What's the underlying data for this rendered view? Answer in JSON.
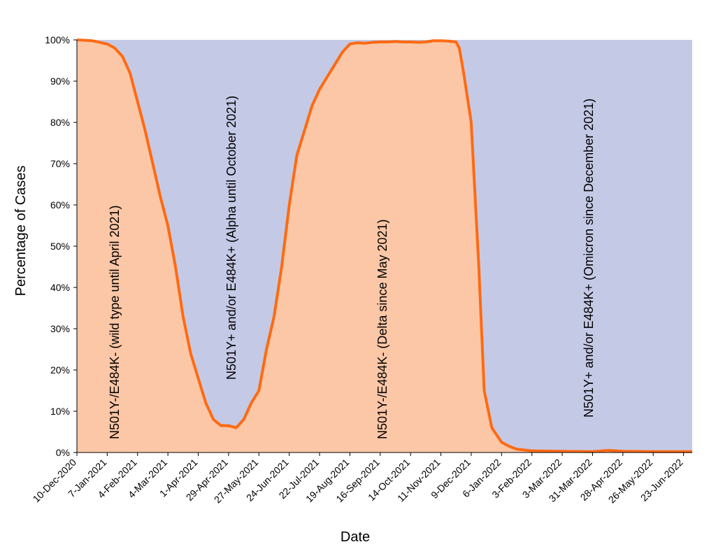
{
  "chart_data": {
    "type": "area",
    "title": "",
    "xlabel": "Date",
    "ylabel": "Percentage of Cases",
    "ylim": [
      0,
      100
    ],
    "grid": false,
    "legend": "none",
    "x_ticks": [
      "10-Dec-2020",
      "7-Jan-2021",
      "4-Feb-2021",
      "4-Mar-2021",
      "1-Apr-2021",
      "29-Apr-2021",
      "27-May-2021",
      "24-Jun-2021",
      "22-Jul-2021",
      "19-Aug-2021",
      "16-Sep-2021",
      "14-Oct-2021",
      "11-Nov-2021",
      "9-Dec-2021",
      "6-Jan-2022",
      "3-Feb-2022",
      "3-Mar-2022",
      "31-Mar-2022",
      "28-Apr-2022",
      "26-May-2022",
      "23-Jun-2022"
    ],
    "x_end": "1-Jul-2022",
    "y_ticks": [
      "0%",
      "10%",
      "20%",
      "30%",
      "40%",
      "50%",
      "60%",
      "70%",
      "80%",
      "90%",
      "100%"
    ],
    "colors": {
      "lower_area": "#fbc7a6",
      "upper_area": "#c4cae6",
      "line": "#ff6a13"
    },
    "annotations": [
      "N501Y-/E484K- (wild type until April 2021)",
      "N501Y+ and/or E484K+ (Alpha until October 2021)",
      "N501Y-/E484K- (Delta since May 2021)",
      "N501Y+ and/or E484K+ (Omicron since December 2021)"
    ],
    "series": [
      {
        "values": [
          [
            "10-Dec-2020",
            100
          ],
          [
            "24-Dec-2020",
            99.8
          ],
          [
            "7-Jan-2021",
            99
          ],
          [
            "14-Jan-2021",
            98
          ],
          [
            "21-Jan-2021",
            96
          ],
          [
            "28-Jan-2021",
            92
          ],
          [
            "4-Feb-2021",
            85
          ],
          [
            "11-Feb-2021",
            78
          ],
          [
            "18-Feb-2021",
            70
          ],
          [
            "25-Feb-2021",
            62
          ],
          [
            "4-Mar-2021",
            55
          ],
          [
            "11-Mar-2021",
            45
          ],
          [
            "18-Mar-2021",
            33
          ],
          [
            "25-Mar-2021",
            24
          ],
          [
            "1-Apr-2021",
            18
          ],
          [
            "8-Apr-2021",
            12
          ],
          [
            "15-Apr-2021",
            8
          ],
          [
            "22-Apr-2021",
            6.5
          ],
          [
            "29-Apr-2021",
            6.5
          ],
          [
            "6-May-2021",
            6
          ],
          [
            "13-May-2021",
            8
          ],
          [
            "20-May-2021",
            12
          ],
          [
            "27-May-2021",
            15
          ],
          [
            "3-Jun-2021",
            25
          ],
          [
            "10-Jun-2021",
            33
          ],
          [
            "17-Jun-2021",
            45
          ],
          [
            "24-Jun-2021",
            60
          ],
          [
            "1-Jul-2021",
            72
          ],
          [
            "8-Jul-2021",
            78
          ],
          [
            "15-Jul-2021",
            84
          ],
          [
            "22-Jul-2021",
            88
          ],
          [
            "29-Jul-2021",
            91
          ],
          [
            "5-Aug-2021",
            94
          ],
          [
            "12-Aug-2021",
            97
          ],
          [
            "19-Aug-2021",
            99
          ],
          [
            "26-Aug-2021",
            99.3
          ],
          [
            "2-Sep-2021",
            99.2
          ],
          [
            "9-Sep-2021",
            99.4
          ],
          [
            "16-Sep-2021",
            99.5
          ],
          [
            "23-Sep-2021",
            99.5
          ],
          [
            "30-Sep-2021",
            99.6
          ],
          [
            "7-Oct-2021",
            99.5
          ],
          [
            "14-Oct-2021",
            99.5
          ],
          [
            "21-Oct-2021",
            99.4
          ],
          [
            "28-Oct-2021",
            99.5
          ],
          [
            "4-Nov-2021",
            99.8
          ],
          [
            "11-Nov-2021",
            99.8
          ],
          [
            "18-Nov-2021",
            99.7
          ],
          [
            "25-Nov-2021",
            99.5
          ],
          [
            "28-Nov-2021",
            98
          ],
          [
            "2-Dec-2021",
            92
          ],
          [
            "9-Dec-2021",
            80
          ],
          [
            "16-Dec-2021",
            45
          ],
          [
            "21-Dec-2021",
            15
          ],
          [
            "28-Dec-2021",
            6
          ],
          [
            "6-Jan-2022",
            2.5
          ],
          [
            "13-Jan-2022",
            1.5
          ],
          [
            "20-Jan-2022",
            0.8
          ],
          [
            "3-Feb-2022",
            0.4
          ],
          [
            "3-Mar-2022",
            0.3
          ],
          [
            "31-Mar-2022",
            0.2
          ],
          [
            "14-Apr-2022",
            0.5
          ],
          [
            "28-Apr-2022",
            0.3
          ],
          [
            "26-May-2022",
            0.2
          ],
          [
            "23-Jun-2022",
            0.2
          ],
          [
            "1-Jul-2022",
            0.2
          ]
        ]
      }
    ]
  }
}
